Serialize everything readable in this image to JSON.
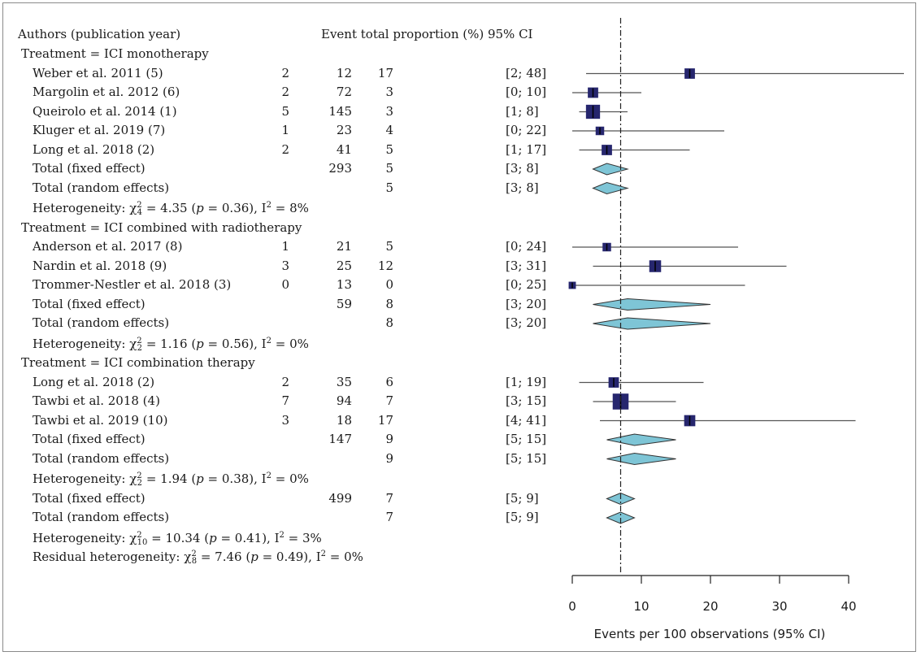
{
  "headers": {
    "authors": "Authors (publication year)",
    "stats": "Event total proportion (%) 95% CI"
  },
  "groups": [
    {
      "label": "Treatment = ICI monotherapy",
      "studies": [
        {
          "author": "Weber et al. 2011 (5)",
          "events": "2",
          "total": "12",
          "prop": 17,
          "lo": 2,
          "hi": 48,
          "ci": "[2; 48]",
          "w": 2
        },
        {
          "author": "Margolin et al. 2012 (6)",
          "events": "2",
          "total": "72",
          "prop": 3,
          "lo": 0,
          "hi": 10,
          "ci": "[0; 10]",
          "w": 2
        },
        {
          "author": "Queirolo et al. 2014 (1)",
          "events": "5",
          "total": "145",
          "prop": 3,
          "lo": 1,
          "hi": 8,
          "ci": "[1; 8]",
          "w": 5
        },
        {
          "author": "Kluger et al. 2019 (7)",
          "events": "1",
          "total": "23",
          "prop": 4,
          "lo": 0,
          "hi": 22,
          "ci": "[0; 22]",
          "w": 1
        },
        {
          "author": "Long et al. 2018 (2)",
          "events": "2",
          "total": "41",
          "prop": 5,
          "lo": 1,
          "hi": 17,
          "ci": "[1; 17]",
          "w": 2
        }
      ],
      "fixed": {
        "label": "Total (fixed effect)",
        "total": "293",
        "prop": 5,
        "lo": 3,
        "hi": 8,
        "ci": "[3; 8]"
      },
      "random": {
        "label": "Total (random effects)",
        "prop": 5,
        "lo": 3,
        "hi": 8,
        "ci": "[3; 8]"
      },
      "het": {
        "df": "4",
        "chi": "4.35",
        "p": "0.36",
        "i2": "8%"
      }
    },
    {
      "label": "Treatment = ICI combined with radiotherapy",
      "studies": [
        {
          "author": "Anderson et al. 2017 (8)",
          "events": "1",
          "total": "21",
          "prop": 5,
          "lo": 0,
          "hi": 24,
          "ci": "[0; 24]",
          "w": 1
        },
        {
          "author": "Nardin et al. 2018 (9)",
          "events": "3",
          "total": "25",
          "prop": 12,
          "lo": 3,
          "hi": 31,
          "ci": "[3; 31]",
          "w": 3
        },
        {
          "author": "Trommer-Nestler et al. 2018 (3)",
          "events": "0",
          "total": "13",
          "prop": 0,
          "lo": 0,
          "hi": 25,
          "ci": "[0; 25]",
          "w": 0.5
        }
      ],
      "fixed": {
        "label": "Total (fixed effect)",
        "total": "59",
        "prop": 8,
        "lo": 3,
        "hi": 20,
        "ci": "[3; 20]"
      },
      "random": {
        "label": "Total (random effects)",
        "prop": 8,
        "lo": 3,
        "hi": 20,
        "ci": "[3; 20]"
      },
      "het": {
        "df": "2",
        "chi": "1.16",
        "p": "0.56",
        "i2": "0%"
      }
    },
    {
      "label": "Treatment = ICI combination therapy",
      "studies": [
        {
          "author": "Long et al. 2018 (2)",
          "events": "2",
          "total": "35",
          "prop": 6,
          "lo": 1,
          "hi": 19,
          "ci": "[1; 19]",
          "w": 2
        },
        {
          "author": "Tawbi et al. 2018 (4)",
          "events": "7",
          "total": "94",
          "prop": 7,
          "lo": 3,
          "hi": 15,
          "ci": "[3; 15]",
          "w": 7
        },
        {
          "author": "Tawbi et al. 2019 (10)",
          "events": "3",
          "total": "18",
          "prop": 17,
          "lo": 4,
          "hi": 41,
          "ci": "[4; 41]",
          "w": 2.5
        }
      ],
      "fixed": {
        "label": "Total (fixed effect)",
        "total": "147",
        "prop": 9,
        "lo": 5,
        "hi": 15,
        "ci": "[5; 15]"
      },
      "random": {
        "label": "Total (random effects)",
        "prop": 9,
        "lo": 5,
        "hi": 15,
        "ci": "[5; 15]"
      },
      "het": {
        "df": "2",
        "chi": "1.94",
        "p": "0.38",
        "i2": "0%"
      }
    }
  ],
  "overall": {
    "fixed": {
      "label": "Total (fixed effect)",
      "total": "499",
      "prop": 7,
      "lo": 5,
      "hi": 9,
      "ci": "[5; 9]"
    },
    "random": {
      "label": "Total (random effects)",
      "prop": 7,
      "lo": 5,
      "hi": 9,
      "ci": "[5; 9]"
    },
    "het": {
      "df": "10",
      "chi": "10.34",
      "p": "0.41",
      "i2": "3%"
    },
    "residual": {
      "df": "8",
      "chi": "7.46",
      "p": "0.49",
      "i2": "0%"
    }
  },
  "chart_data": {
    "type": "scatter",
    "subtype": "forest-plot",
    "xlabel": "Events per 100 observations (95% CI)",
    "xlim": [
      0,
      48
    ],
    "xticks": [
      0,
      10,
      20,
      30,
      40
    ],
    "reference_line": 7,
    "colors": {
      "square": "#26266e",
      "diamond": "#7ec5d6",
      "line": "#555555"
    }
  }
}
